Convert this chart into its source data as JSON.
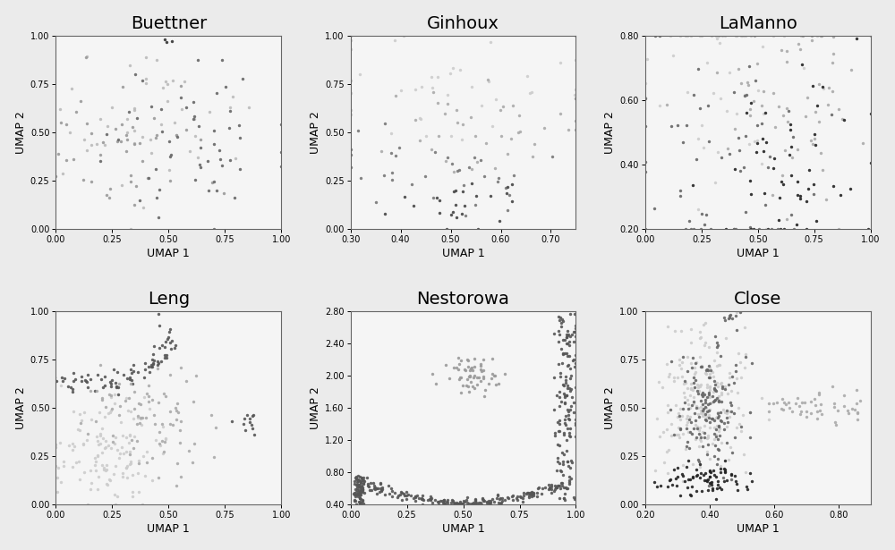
{
  "panels": [
    {
      "title": "Buettner",
      "xlim": [
        0.0,
        1.0
      ],
      "ylim": [
        0.0,
        1.0
      ],
      "xticks": [
        0.0,
        0.25,
        0.5,
        0.75,
        1.0
      ],
      "yticks": [
        0.0,
        0.25,
        0.5,
        0.75,
        1.0
      ],
      "cluster_colors": [
        "#bbbbbb",
        "#999999",
        "#666666",
        "#333333"
      ],
      "cluster_centers": [
        [
          0.45,
          0.55
        ],
        [
          0.3,
          0.4
        ],
        [
          0.6,
          0.45
        ],
        [
          0.5,
          0.97
        ]
      ],
      "cluster_spreads": [
        0.22,
        0.18,
        0.2,
        0.02
      ],
      "cluster_n": [
        50,
        45,
        55,
        3
      ],
      "seed": 42
    },
    {
      "title": "Ginhoux",
      "xlim": [
        0.3,
        0.75
      ],
      "ylim": [
        0.0,
        1.0
      ],
      "xticks": [
        0.3,
        0.4,
        0.5,
        0.6,
        0.7
      ],
      "yticks": [
        0.0,
        0.25,
        0.5,
        0.75,
        1.0
      ],
      "cluster_colors": [
        "#cccccc",
        "#aaaaaa",
        "#777777",
        "#444444"
      ],
      "cluster_centers": [
        [
          0.5,
          0.75
        ],
        [
          0.55,
          0.55
        ],
        [
          0.48,
          0.3
        ],
        [
          0.52,
          0.12
        ]
      ],
      "cluster_spreads": [
        0.15,
        0.13,
        0.12,
        0.08
      ],
      "cluster_n": [
        40,
        40,
        35,
        25
      ],
      "seed": 7
    },
    {
      "title": "LaManno",
      "xlim": [
        0.0,
        1.0
      ],
      "ylim": [
        0.2,
        0.8
      ],
      "xticks": [
        0.0,
        0.25,
        0.5,
        0.75,
        1.0
      ],
      "yticks": [
        0.2,
        0.4,
        0.6,
        0.8
      ],
      "cluster_colors": [
        "#cccccc",
        "#aaaaaa",
        "#666666",
        "#222222"
      ],
      "cluster_centers": [
        [
          0.35,
          0.68
        ],
        [
          0.65,
          0.62
        ],
        [
          0.3,
          0.38
        ],
        [
          0.65,
          0.38
        ]
      ],
      "cluster_spreads": [
        0.2,
        0.18,
        0.2,
        0.18
      ],
      "cluster_n": [
        55,
        60,
        60,
        55
      ],
      "seed": 99
    },
    {
      "title": "Leng",
      "xlim": [
        0.0,
        1.0
      ],
      "ylim": [
        0.0,
        1.0
      ],
      "xticks": [
        0.0,
        0.25,
        0.5,
        0.75,
        1.0
      ],
      "yticks": [
        0.0,
        0.25,
        0.5,
        0.75,
        1.0
      ],
      "cluster_colors": [
        "#cccccc",
        "#aaaaaa",
        "#555555"
      ],
      "seed": 55,
      "shape": "leng"
    },
    {
      "title": "Nestorowa",
      "xlim": [
        0.0,
        1.0
      ],
      "ylim": [
        0.4,
        2.8
      ],
      "xticks": [
        0.0,
        0.25,
        0.5,
        0.75,
        1.0
      ],
      "yticks": [
        0.4,
        0.8,
        1.2,
        1.6,
        2.0,
        2.4,
        2.8
      ],
      "cluster_colors": [
        "#999999",
        "#555555"
      ],
      "seed": 88,
      "shape": "nestorowa"
    },
    {
      "title": "Close",
      "xlim": [
        0.2,
        0.9
      ],
      "ylim": [
        0.0,
        1.0
      ],
      "xticks": [
        0.2,
        0.4,
        0.6,
        0.8
      ],
      "yticks": [
        0.0,
        0.25,
        0.5,
        0.75,
        1.0
      ],
      "cluster_colors": [
        "#cccccc",
        "#aaaaaa",
        "#666666",
        "#222222"
      ],
      "seed": 77,
      "shape": "close"
    }
  ],
  "xlabel": "UMAP 1",
  "ylabel": "UMAP 2",
  "bg_color": "#f5f5f5",
  "fig_bg": "#f0f0f0",
  "marker_size": 6,
  "marker": "o",
  "title_fontsize": 14,
  "label_fontsize": 9,
  "tick_fontsize": 7,
  "spine_color": "#666666"
}
